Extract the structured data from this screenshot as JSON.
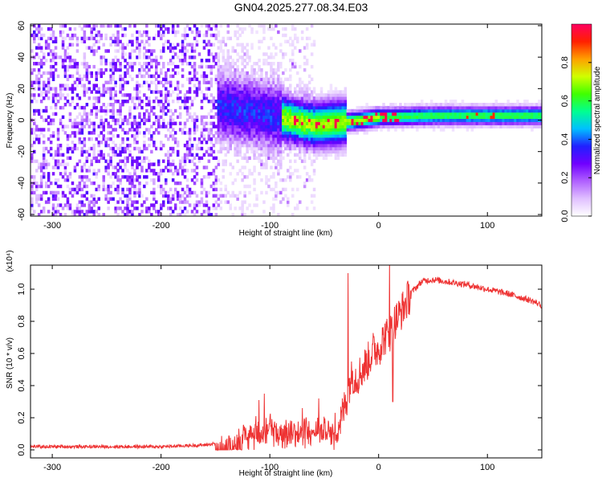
{
  "title": "GN04.2025.277.08.34.E03",
  "chart_data": [
    {
      "type": "heatmap",
      "xlabel": "Height of straight line (km)",
      "ylabel": "Frequency (Hz)",
      "xlim": [
        -320,
        150
      ],
      "ylim": [
        -61,
        61
      ],
      "x_ticks": [
        -300,
        -200,
        -100,
        0,
        100
      ],
      "x_tick_labels": [
        "-300",
        "-200",
        "-100",
        "0",
        "100"
      ],
      "y_ticks": [
        60,
        40,
        20,
        0,
        -20,
        -40,
        -60
      ],
      "y_tick_labels": [
        "60",
        "40",
        "20",
        "0",
        "-20",
        "-40",
        "-60"
      ],
      "colorbar": {
        "label": "Normalized spectral amplitude",
        "range": [
          0,
          1
        ],
        "ticks": [
          0.0,
          0.2,
          0.4,
          0.6,
          0.8
        ],
        "tick_labels": [
          "0.0",
          "0.2",
          "0.4",
          "0.6",
          "0.8"
        ],
        "colors": [
          "#ffffff",
          "#e0c0ff",
          "#b060ff",
          "#7000ff",
          "#2020ff",
          "#00c0ff",
          "#00ff90",
          "#40ff00",
          "#d0ff00",
          "#ffa000",
          "#ff2000",
          "#ff0060"
        ]
      },
      "features": {
        "noise_region_x": [
          -320,
          -150
        ],
        "signal_band_center_hz": [
          [
            -150,
            8
          ],
          [
            -100,
            2
          ],
          [
            -60,
            -4
          ],
          [
            -30,
            -2
          ],
          [
            0,
            1
          ],
          [
            50,
            2
          ],
          [
            150,
            2
          ]
        ]
      }
    },
    {
      "type": "line",
      "xlabel": "Height of straight line (km)",
      "ylabel": "SNR (10 * v/v)",
      "y_multiplier_label": "(x10⁴)",
      "xlim": [
        -320,
        150
      ],
      "ylim": [
        -0.05,
        1.15
      ],
      "x_ticks": [
        -300,
        -200,
        -100,
        0,
        100
      ],
      "x_tick_labels": [
        "-300",
        "-200",
        "-100",
        "0",
        "100"
      ],
      "y_ticks": [
        0.0,
        0.2,
        0.4,
        0.6,
        0.8,
        1.0
      ],
      "y_tick_labels": [
        "0.0",
        "0.2",
        "0.4",
        "0.6",
        "0.8",
        "1.0"
      ],
      "color": "#ee3333",
      "series": [
        {
          "x": [
            -320,
            -200,
            -160,
            -140,
            -130,
            -120,
            -110,
            -100,
            -90,
            -80,
            -70,
            -60,
            -50,
            -40,
            -35,
            -30,
            -25,
            -20,
            -15,
            -10,
            -5,
            0,
            5,
            10,
            15,
            20,
            30,
            40,
            50,
            60,
            80,
            100,
            120,
            140,
            150
          ],
          "y": [
            0.02,
            0.02,
            0.03,
            0.05,
            0.08,
            0.13,
            0.17,
            0.18,
            0.16,
            0.14,
            0.15,
            0.17,
            0.18,
            0.13,
            0.18,
            0.3,
            0.47,
            0.45,
            0.5,
            0.55,
            0.62,
            0.63,
            0.7,
            0.72,
            0.8,
            0.85,
            0.98,
            1.05,
            1.06,
            1.05,
            1.03,
            1.0,
            0.97,
            0.93,
            0.9
          ]
        }
      ],
      "spikes": [
        [
          -110,
          0.31
        ],
        [
          -105,
          0.35
        ],
        [
          -70,
          0.26
        ],
        [
          -55,
          0.32
        ],
        [
          -28,
          1.1
        ],
        [
          -25,
          0.55
        ],
        [
          10,
          1.18
        ],
        [
          13,
          0.3
        ]
      ]
    }
  ]
}
